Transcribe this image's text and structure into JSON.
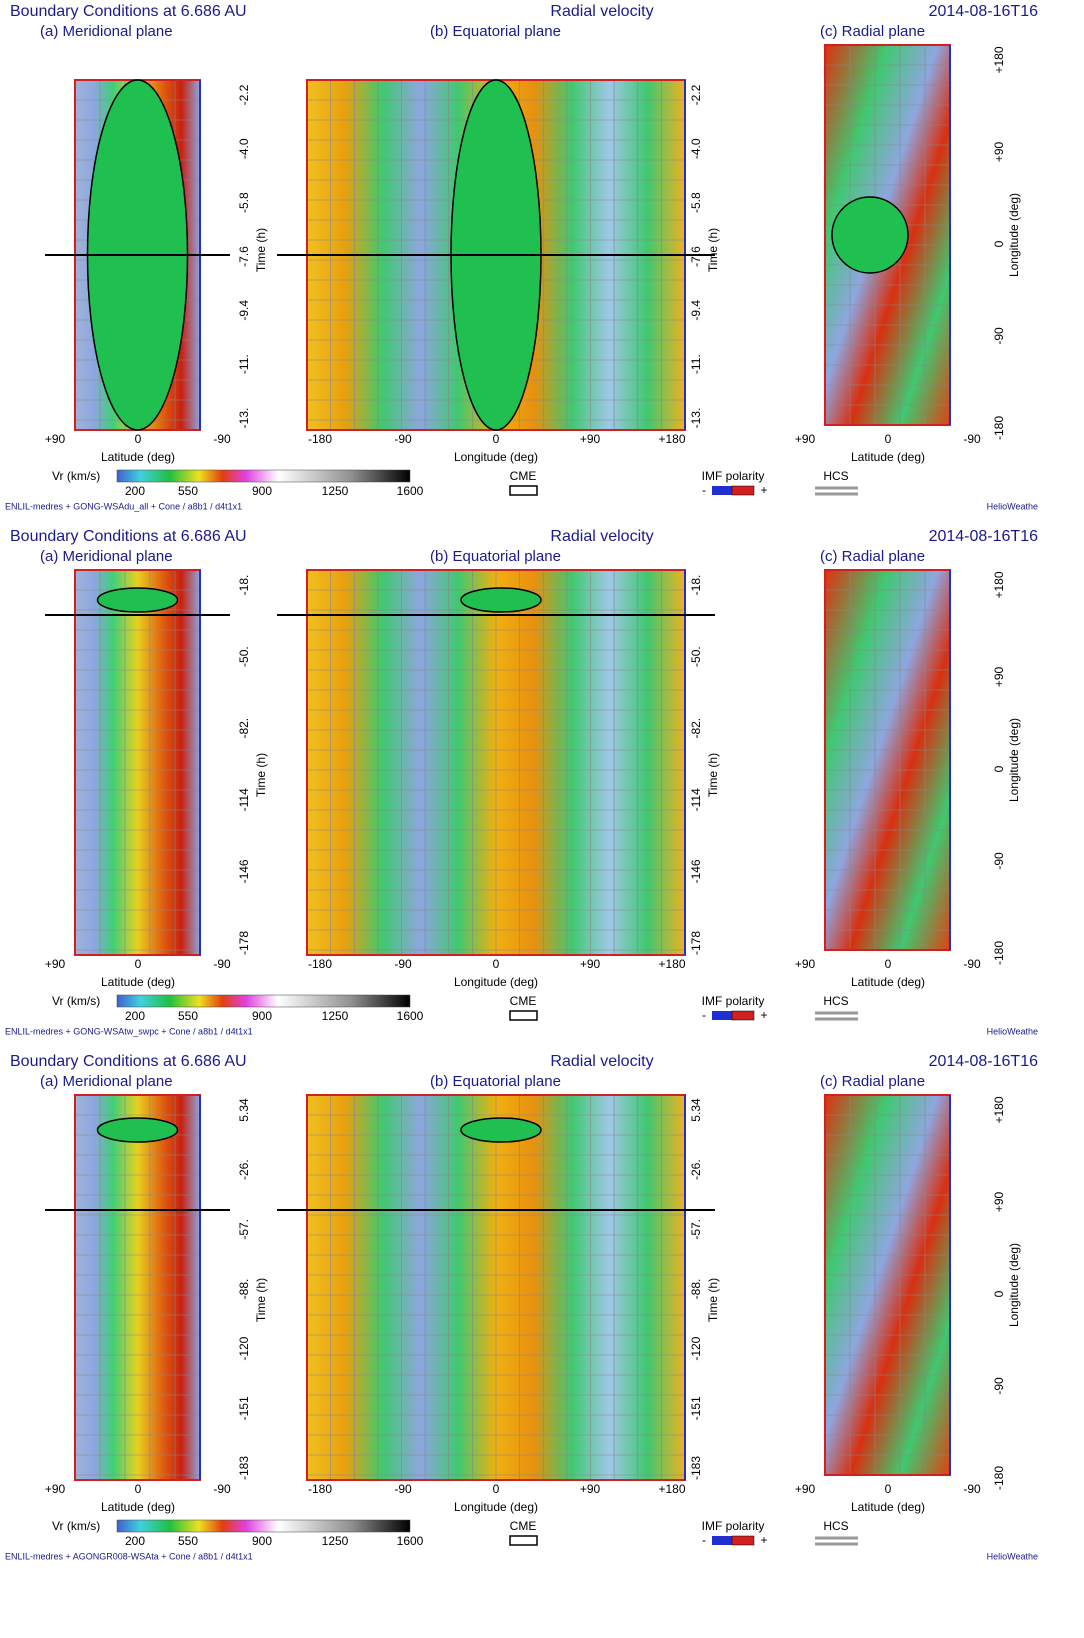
{
  "blocks": [
    {
      "title": "Boundary Conditions at 6.686 AU",
      "quantity": "Radial velocity",
      "date": "2014-08-16T16",
      "meridional": {
        "label": "(a) Meridional plane",
        "xticks": [
          "+90",
          "0",
          "-90"
        ],
        "xlabel": "Latitude (deg)",
        "ylabel": "Time (h)",
        "yticks": [
          "-2.2",
          "-4.0",
          "-5.8",
          "-7.6",
          "-9.4",
          "-11.",
          "-13."
        ]
      },
      "equatorial": {
        "label": "(b) Equatorial plane",
        "xticks": [
          "-180",
          "-90",
          "0",
          "+90",
          "+180"
        ],
        "xlabel": "Longitude (deg)",
        "ylabel": "Time (h)",
        "yticks": [
          "-2.2",
          "-4.0",
          "-5.8",
          "-7.6",
          "-9.4",
          "-11.",
          "-13."
        ]
      },
      "radial": {
        "label": "(c) Radial plane",
        "xticks": [
          "+90",
          "0",
          "-90"
        ],
        "xlabel": "Latitude (deg)",
        "ylabel": "Longitude (deg)",
        "yticks": [
          "+180",
          "+90",
          "0",
          "-90",
          "-180"
        ]
      },
      "colorbar": {
        "label": "Vr (km/s)",
        "ticks": [
          "200",
          "550",
          "900",
          "1250",
          "1600"
        ]
      },
      "cme": "CME",
      "imf": {
        "label": "IMF polarity",
        "minus": "-",
        "plus": "+"
      },
      "hcs": "HCS",
      "footer": "ENLIL-medres + GONG-WSAdu_all + Cone / a8b1 / d4t1x1",
      "credit": "HelioWeathe"
    },
    {
      "title": "Boundary Conditions at 6.686 AU",
      "quantity": "Radial velocity",
      "date": "2014-08-16T16",
      "meridional": {
        "label": "(a) Meridional plane",
        "xticks": [
          "+90",
          "0",
          "-90"
        ],
        "xlabel": "Latitude (deg)",
        "ylabel": "Time (h)",
        "yticks": [
          "-18.",
          "-50.",
          "-82.",
          "-114",
          "-146",
          "-178"
        ]
      },
      "equatorial": {
        "label": "(b) Equatorial plane",
        "xticks": [
          "-180",
          "-90",
          "0",
          "+90",
          "+180"
        ],
        "xlabel": "Longitude (deg)",
        "ylabel": "Time (h)",
        "yticks": [
          "-18.",
          "-50.",
          "-82.",
          "-114",
          "-146",
          "-178"
        ]
      },
      "radial": {
        "label": "(c) Radial plane",
        "xticks": [
          "+90",
          "0",
          "-90"
        ],
        "xlabel": "Latitude (deg)",
        "ylabel": "Longitude (deg)",
        "yticks": [
          "+180",
          "+90",
          "0",
          "-90",
          "-180"
        ]
      },
      "colorbar": {
        "label": "Vr (km/s)",
        "ticks": [
          "200",
          "550",
          "900",
          "1250",
          "1600"
        ]
      },
      "cme": "CME",
      "imf": {
        "label": "IMF polarity",
        "minus": "-",
        "plus": "+"
      },
      "hcs": "HCS",
      "footer": "ENLIL-medres + GONG-WSAtw_swpc + Cone / a8b1 / d4t1x1",
      "credit": "HelioWeathe"
    },
    {
      "title": "Boundary Conditions at 6.686 AU",
      "quantity": "Radial velocity",
      "date": "2014-08-16T16",
      "meridional": {
        "label": "(a) Meridional plane",
        "xticks": [
          "+90",
          "0",
          "-90"
        ],
        "xlabel": "Latitude (deg)",
        "ylabel": "Time (h)",
        "yticks": [
          "5.34",
          "-26.",
          "-57.",
          "-88.",
          "-120",
          "-151",
          "-183"
        ]
      },
      "equatorial": {
        "label": "(b) Equatorial plane",
        "xticks": [
          "-180",
          "-90",
          "0",
          "+90",
          "+180"
        ],
        "xlabel": "Longitude (deg)",
        "ylabel": "Time (h)",
        "yticks": [
          "5.34",
          "-26.",
          "-57.",
          "-88.",
          "-120",
          "-151",
          "-183"
        ]
      },
      "radial": {
        "label": "(c) Radial plane",
        "xticks": [
          "+90",
          "0",
          "-90"
        ],
        "xlabel": "Latitude (deg)",
        "ylabel": "Longitude (deg)",
        "yticks": [
          "+180",
          "+90",
          "0",
          "-90",
          "-180"
        ]
      },
      "colorbar": {
        "label": "Vr (km/s)",
        "ticks": [
          "200",
          "550",
          "900",
          "1250",
          "1600"
        ]
      },
      "cme": "CME",
      "imf": {
        "label": "IMF polarity",
        "minus": "-",
        "plus": "+"
      },
      "hcs": "HCS",
      "footer": "ENLIL-medres + AGONGR008-WSAta + Cone / a8b1 / d4t1x1",
      "credit": "HelioWeathe"
    }
  ]
}
